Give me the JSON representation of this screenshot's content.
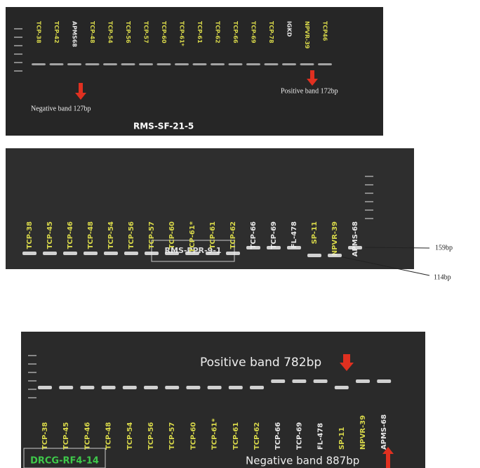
{
  "panels": [
    {
      "lanes": [
        {
          "label": "TCP-38",
          "color": "#d8d84a"
        },
        {
          "label": "TCP-42",
          "color": "#d8d84a"
        },
        {
          "label": "APMS68",
          "color": "#e8e8e8"
        },
        {
          "label": "TCP-48",
          "color": "#d8d84a"
        },
        {
          "label": "TCP-54",
          "color": "#d8d84a"
        },
        {
          "label": "TCP-56",
          "color": "#d8d84a"
        },
        {
          "label": "TCP-57",
          "color": "#d8d84a"
        },
        {
          "label": "TCP-60",
          "color": "#d8d84a"
        },
        {
          "label": "TCP-61*",
          "color": "#d8d84a"
        },
        {
          "label": "TCP-61",
          "color": "#d8d84a"
        },
        {
          "label": "TCP-62",
          "color": "#d8d84a"
        },
        {
          "label": "TCP-66",
          "color": "#d8d84a"
        },
        {
          "label": "TCP-69",
          "color": "#d8d84a"
        },
        {
          "label": "TCP-78",
          "color": "#d8d84a"
        },
        {
          "label": "IGKD",
          "color": "#e8e8e8"
        },
        {
          "label": "NPVR-39",
          "color": "#d8d84a"
        },
        {
          "label": "TCP46",
          "color": "#d8d84a"
        }
      ],
      "annotations": {
        "negative": "Negative band 127bp",
        "positive": "Positive band 172bp"
      },
      "marker": "RMS-SF-21-5"
    },
    {
      "lanes": [
        {
          "label": "TCP-38",
          "color": "#d8d84a"
        },
        {
          "label": "TCP-45",
          "color": "#d8d84a"
        },
        {
          "label": "TCP-46",
          "color": "#d8d84a"
        },
        {
          "label": "TCP-48",
          "color": "#d8d84a"
        },
        {
          "label": "TCP-54",
          "color": "#d8d84a"
        },
        {
          "label": "TCP-56",
          "color": "#d8d84a"
        },
        {
          "label": "TCP-57",
          "color": "#d8d84a"
        },
        {
          "label": "TCP-60",
          "color": "#d8d84a"
        },
        {
          "label": "TCP-61*",
          "color": "#d8d84a"
        },
        {
          "label": "TCP-61",
          "color": "#d8d84a"
        },
        {
          "label": "TCP-62",
          "color": "#d8d84a"
        },
        {
          "label": "TCP-66",
          "color": "#e8e8e8"
        },
        {
          "label": "TCP-69",
          "color": "#e8e8e8"
        },
        {
          "label": "FL-478",
          "color": "#e8e8e8"
        },
        {
          "label": "SP-11",
          "color": "#d8d84a"
        },
        {
          "label": "NPVR-39",
          "color": "#d8d84a"
        },
        {
          "label": "APMS-68",
          "color": "#e8e8e8"
        }
      ],
      "annotations": {
        "upper": "159bp",
        "lower": "114bp"
      },
      "marker": "RMS-PPR-9-1"
    },
    {
      "lanes": [
        {
          "label": "TCP-38",
          "color": "#d8d84a"
        },
        {
          "label": "TCP-45",
          "color": "#d8d84a"
        },
        {
          "label": "TCP-46",
          "color": "#d8d84a"
        },
        {
          "label": "TCP-48",
          "color": "#d8d84a"
        },
        {
          "label": "TCP-54",
          "color": "#d8d84a"
        },
        {
          "label": "TCP-56",
          "color": "#d8d84a"
        },
        {
          "label": "TCP-57",
          "color": "#d8d84a"
        },
        {
          "label": "TCP-60",
          "color": "#d8d84a"
        },
        {
          "label": "TCP-61*",
          "color": "#d8d84a"
        },
        {
          "label": "TCP-61",
          "color": "#d8d84a"
        },
        {
          "label": "TCP-62",
          "color": "#d8d84a"
        },
        {
          "label": "TCP-66",
          "color": "#e8e8e8"
        },
        {
          "label": "TCP-69",
          "color": "#e8e8e8"
        },
        {
          "label": "FL-478",
          "color": "#e8e8e8"
        },
        {
          "label": "SP-11",
          "color": "#d8d84a"
        },
        {
          "label": "NPVR-39",
          "color": "#d8d84a"
        },
        {
          "label": "APMS-68",
          "color": "#e8e8e8"
        }
      ],
      "annotations": {
        "positive": "Positive band 782bp",
        "negative": "Negative band 887bp"
      },
      "marker": "DRCG-RF4-14"
    }
  ]
}
